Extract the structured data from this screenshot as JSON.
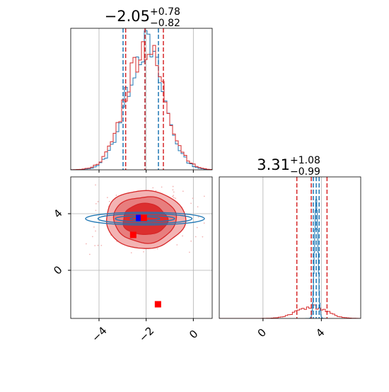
{
  "figure": {
    "kind": "corner-plot",
    "colors": {
      "blue": "#1f77b4",
      "red": "#d62728",
      "grid": "#b0b0b0",
      "marker_red": "#ff0000",
      "marker_blue": "#0000ff"
    }
  },
  "chart_data": [
    {
      "panel": "marginal-param-1",
      "type": "histogram",
      "title_main": "−2.05",
      "title_sup": "+0.78",
      "title_sub": "−0.82",
      "xlim": [
        -5.2,
        0.8
      ],
      "x_ticks": [
        -4,
        -2,
        0
      ],
      "series": [
        {
          "color": "blue",
          "quantiles": [
            -2.98,
            -2.05,
            -1.48
          ]
        },
        {
          "color": "red",
          "quantiles": [
            -2.87,
            -2.05,
            -1.27
          ]
        }
      ],
      "grid": true
    },
    {
      "panel": "marginal-param-2",
      "type": "histogram",
      "title_main": "3.31",
      "title_sup": "+1.08",
      "title_sub": "−0.99",
      "xlim": [
        -3.0,
        6.7
      ],
      "x_ticks": [
        0,
        4
      ],
      "x_tick_labels": [
        "0",
        "4"
      ],
      "series": [
        {
          "color": "blue",
          "quantiles": [
            3.45,
            3.65,
            3.85
          ]
        },
        {
          "color": "red",
          "quantiles": [
            2.32,
            3.31,
            4.39
          ]
        }
      ],
      "grid": true
    },
    {
      "panel": "joint-param-1-param-2",
      "type": "contour",
      "xlim": [
        -5.2,
        0.8
      ],
      "ylim": [
        -3.4,
        6.6
      ],
      "x_ticks": [
        -4,
        -2,
        0
      ],
      "x_tick_labels": [
        "−4",
        "−2",
        "0"
      ],
      "y_ticks": [
        0,
        4
      ],
      "y_tick_labels": [
        "0",
        "4"
      ],
      "contours": [
        {
          "color": "red",
          "center": [
            -2.05,
            3.6
          ],
          "sigma": [
            0.82,
            1.05
          ]
        },
        {
          "color": "blue",
          "center": [
            -2.05,
            3.65
          ],
          "sigma": [
            1.05,
            0.2
          ]
        }
      ],
      "markers": [
        {
          "color": "marker_blue",
          "x": -2.3,
          "y": 3.7
        },
        {
          "color": "marker_red",
          "x": -2.1,
          "y": 3.7
        },
        {
          "color": "marker_red",
          "x": -2.55,
          "y": 2.5
        },
        {
          "color": "marker_red",
          "x": -1.5,
          "y": -2.4
        }
      ],
      "grid": true
    }
  ]
}
